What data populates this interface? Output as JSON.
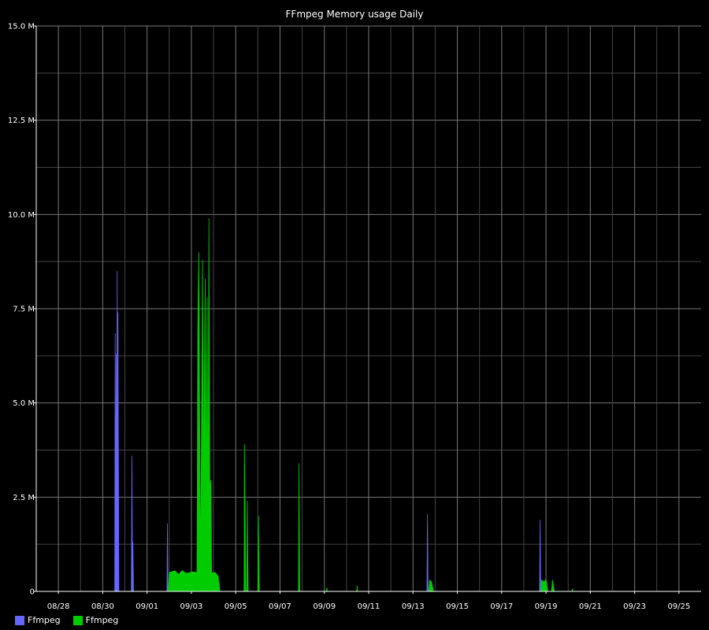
{
  "chart_data": {
    "type": "area",
    "title": "FFmpeg Memory usage Daily",
    "xlabel": "",
    "ylabel": "",
    "ylim": [
      0,
      15000000
    ],
    "xlim": [
      "2023-08-27",
      "2023-09-26"
    ],
    "y_ticks": [
      {
        "value": 0,
        "label": "0"
      },
      {
        "value": 2500000,
        "label": "2.5 M"
      },
      {
        "value": 5000000,
        "label": "5.0 M"
      },
      {
        "value": 7500000,
        "label": "7.5 M"
      },
      {
        "value": 10000000,
        "label": "10.0 M"
      },
      {
        "value": 12500000,
        "label": "12.5 M"
      },
      {
        "value": 15000000,
        "label": "15.0 M"
      }
    ],
    "x_ticks": [
      "08/28",
      "08/30",
      "09/01",
      "09/03",
      "09/05",
      "09/07",
      "09/09",
      "09/11",
      "09/13",
      "09/15",
      "09/17",
      "09/19",
      "09/21",
      "09/23",
      "09/25"
    ],
    "grid": true,
    "legend_position": "bottom-left",
    "series": [
      {
        "name": "Ffmpeg",
        "color": "#6666ff",
        "points": [
          [
            "2023-08-30 13:00",
            0
          ],
          [
            "2023-08-30 13:30",
            6850000
          ],
          [
            "2023-08-30 14:00",
            0
          ],
          [
            "2023-08-30 14:30",
            6300000
          ],
          [
            "2023-08-30 15:00",
            1000000
          ],
          [
            "2023-08-30 15:40",
            8500000
          ],
          [
            "2023-08-30 16:10",
            0
          ],
          [
            "2023-08-30 16:30",
            7400000
          ],
          [
            "2023-08-30 17:30",
            0
          ],
          [
            "2023-08-31 07:00",
            0
          ],
          [
            "2023-08-31 07:40",
            3600000
          ],
          [
            "2023-08-31 08:20",
            0
          ],
          [
            "2023-08-31 08:40",
            1300000
          ],
          [
            "2023-08-31 09:20",
            0
          ],
          [
            "2023-09-01 21:30",
            0
          ],
          [
            "2023-09-01 22:00",
            1800000
          ],
          [
            "2023-09-01 22:40",
            0
          ],
          [
            "2023-09-13 15:00",
            0
          ],
          [
            "2023-09-13 15:40",
            2050000
          ],
          [
            "2023-09-13 16:20",
            0
          ],
          [
            "2023-09-18 17:00",
            0
          ],
          [
            "2023-09-18 17:40",
            1900000
          ],
          [
            "2023-09-18 18:20",
            0
          ]
        ]
      },
      {
        "name": "Ffmpeg",
        "color": "#00cc00",
        "points": [
          [
            "2023-09-01 23:00",
            0
          ],
          [
            "2023-09-02 00:00",
            500000
          ],
          [
            "2023-09-02 06:00",
            550000
          ],
          [
            "2023-09-02 10:00",
            450000
          ],
          [
            "2023-09-02 14:00",
            550000
          ],
          [
            "2023-09-02 18:00",
            480000
          ],
          [
            "2023-09-03 02:00",
            520000
          ],
          [
            "2023-09-03 06:00",
            500000
          ],
          [
            "2023-09-03 07:00",
            7000000
          ],
          [
            "2023-09-03 08:00",
            9000000
          ],
          [
            "2023-09-03 09:00",
            4500000
          ],
          [
            "2023-09-03 10:00",
            600000
          ],
          [
            "2023-09-03 12:00",
            8800000
          ],
          [
            "2023-09-03 13:00",
            3000000
          ],
          [
            "2023-09-03 15:00",
            8300000
          ],
          [
            "2023-09-03 16:00",
            2000000
          ],
          [
            "2023-09-03 17:00",
            7800000
          ],
          [
            "2023-09-03 18:00",
            1500000
          ],
          [
            "2023-09-03 19:00",
            9900000
          ],
          [
            "2023-09-03 20:00",
            2500000
          ],
          [
            "2023-09-03 21:00",
            2950000
          ],
          [
            "2023-09-03 22:00",
            500000
          ],
          [
            "2023-09-04 02:00",
            500000
          ],
          [
            "2023-09-04 05:00",
            400000
          ],
          [
            "2023-09-04 07:00",
            0
          ],
          [
            "2023-09-05 09:00",
            0
          ],
          [
            "2023-09-05 09:30",
            3900000
          ],
          [
            "2023-09-05 11:00",
            0
          ],
          [
            "2023-09-05 12:00",
            0
          ],
          [
            "2023-09-05 12:30",
            2400000
          ],
          [
            "2023-09-05 13:30",
            0
          ],
          [
            "2023-09-06 00:00",
            0
          ],
          [
            "2023-09-06 00:40",
            2000000
          ],
          [
            "2023-09-06 01:30",
            0
          ],
          [
            "2023-09-07 20:00",
            0
          ],
          [
            "2023-09-07 20:30",
            3400000
          ],
          [
            "2023-09-07 21:20",
            0
          ],
          [
            "2023-09-09 02:00",
            0
          ],
          [
            "2023-09-09 02:30",
            100000
          ],
          [
            "2023-09-09 03:00",
            0
          ],
          [
            "2023-09-10 11:00",
            0
          ],
          [
            "2023-09-10 11:30",
            150000
          ],
          [
            "2023-09-10 12:00",
            0
          ],
          [
            "2023-09-13 17:00",
            0
          ],
          [
            "2023-09-13 18:00",
            300000
          ],
          [
            "2023-09-13 20:00",
            250000
          ],
          [
            "2023-09-13 22:00",
            0
          ],
          [
            "2023-09-18 18:30",
            0
          ],
          [
            "2023-09-18 19:00",
            300000
          ],
          [
            "2023-09-18 22:00",
            250000
          ],
          [
            "2023-09-19 00:00",
            320000
          ],
          [
            "2023-09-19 02:00",
            0
          ],
          [
            "2023-09-19 06:00",
            0
          ],
          [
            "2023-09-19 07:00",
            300000
          ],
          [
            "2023-09-19 09:00",
            0
          ],
          [
            "2023-09-20 04:00",
            0
          ],
          [
            "2023-09-20 04:30",
            60000
          ],
          [
            "2023-09-20 05:00",
            0
          ]
        ]
      }
    ]
  }
}
